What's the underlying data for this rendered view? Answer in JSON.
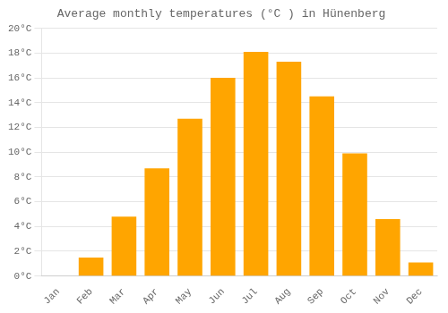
{
  "chart_data": {
    "type": "bar",
    "title": "Average monthly temperatures (°C ) in Hünenberg",
    "categories": [
      "Jan",
      "Feb",
      "Mar",
      "Apr",
      "May",
      "Jun",
      "Jul",
      "Aug",
      "Sep",
      "Oct",
      "Nov",
      "Dec"
    ],
    "values": [
      0.0,
      1.5,
      4.8,
      8.7,
      12.7,
      16.0,
      18.1,
      17.3,
      14.5,
      9.9,
      4.6,
      1.1
    ],
    "color": "#FFA500",
    "ylim": [
      0,
      20
    ],
    "yticks": [
      {
        "value": 0,
        "label": "0°C"
      },
      {
        "value": 2,
        "label": "2°C"
      },
      {
        "value": 4,
        "label": "4°C"
      },
      {
        "value": 6,
        "label": "6°C"
      },
      {
        "value": 8,
        "label": "8°C"
      },
      {
        "value": 10,
        "label": "10°C"
      },
      {
        "value": 12,
        "label": "12°C"
      },
      {
        "value": 14,
        "label": "14°C"
      },
      {
        "value": 16,
        "label": "16°C"
      },
      {
        "value": 18,
        "label": "18°C"
      },
      {
        "value": 20,
        "label": "20°C"
      }
    ],
    "grid": true
  }
}
